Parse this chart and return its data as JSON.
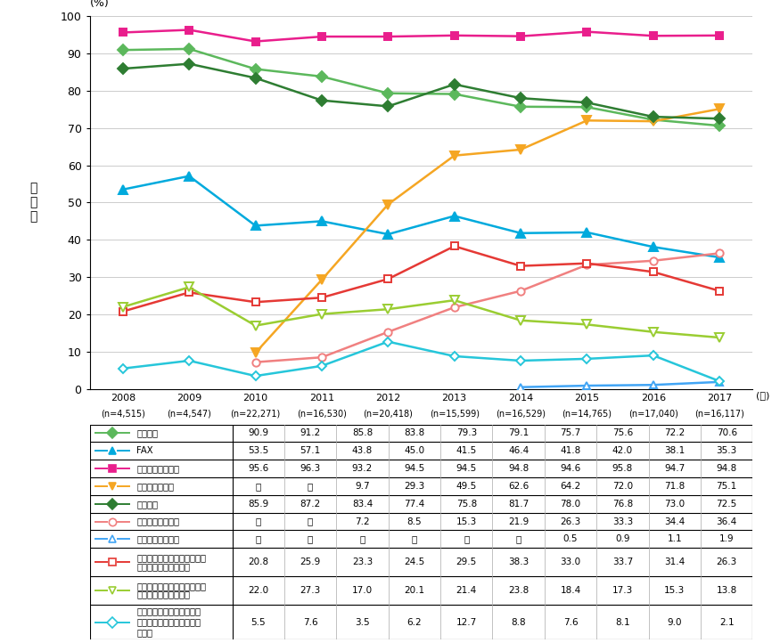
{
  "years_idx": [
    0,
    1,
    2,
    3,
    4,
    5,
    6,
    7,
    8,
    9
  ],
  "x_labels_line1": [
    "2008",
    "2009",
    "2010",
    "2011",
    "2012",
    "2013",
    "2014",
    "2015",
    "2016",
    "2017"
  ],
  "x_labels_line2": [
    "(n=4,515)",
    "(n=4,547)",
    "(n=22,271)",
    "(n=16,530)",
    "(n=20,418)",
    "(n=15,599)",
    "(n=16,529)",
    "(n=14,765)",
    "(n=17,040)",
    "(n=16,117)"
  ],
  "year_unit": "(年)",
  "ylabel": "保\n有\n率",
  "ylabel_unit": "(%)",
  "ylim": [
    0,
    100
  ],
  "yticks": [
    0,
    10,
    20,
    30,
    40,
    50,
    60,
    70,
    80,
    90,
    100
  ],
  "series": [
    {
      "name": "固定電話",
      "values": [
        90.9,
        91.2,
        85.8,
        83.8,
        79.3,
        79.1,
        75.7,
        75.6,
        72.2,
        70.6
      ],
      "color": "#5cb85c",
      "marker": "D",
      "markersize": 6,
      "markerfacecolor": "#5cb85c",
      "linewidth": 1.8
    },
    {
      "name": "FAX",
      "values": [
        53.5,
        57.1,
        43.8,
        45.0,
        41.5,
        46.4,
        41.8,
        42.0,
        38.1,
        35.3
      ],
      "color": "#00aadd",
      "marker": "^",
      "markersize": 7,
      "markerfacecolor": "#00aadd",
      "linewidth": 1.8
    },
    {
      "name": "モバイル端末全体",
      "values": [
        95.6,
        96.3,
        93.2,
        94.5,
        94.5,
        94.8,
        94.6,
        95.8,
        94.7,
        94.8
      ],
      "color": "#e91e8c",
      "marker": "s",
      "markersize": 6,
      "markerfacecolor": "#e91e8c",
      "linewidth": 1.8
    },
    {
      "name": "スマートフォン",
      "values": [
        null,
        null,
        9.7,
        29.3,
        49.5,
        62.6,
        64.2,
        72.0,
        71.8,
        75.1
      ],
      "color": "#f5a623",
      "marker": "v",
      "markersize": 7,
      "markerfacecolor": "#f5a623",
      "linewidth": 1.8
    },
    {
      "name": "パソコン",
      "values": [
        85.9,
        87.2,
        83.4,
        77.4,
        75.8,
        81.7,
        78.0,
        76.8,
        73.0,
        72.5
      ],
      "color": "#2e7d32",
      "marker": "D",
      "markersize": 6,
      "markerfacecolor": "#2e7d32",
      "linewidth": 1.8
    },
    {
      "name": "タブレット型端末",
      "values": [
        null,
        null,
        7.2,
        8.5,
        15.3,
        21.9,
        26.3,
        33.3,
        34.4,
        36.4
      ],
      "color": "#f08080",
      "marker": "o",
      "markersize": 6,
      "markerfacecolor": "white",
      "linewidth": 1.8
    },
    {
      "name": "ウェアラブル端末",
      "values": [
        null,
        null,
        null,
        null,
        null,
        null,
        0.5,
        0.9,
        1.1,
        1.9
      ],
      "color": "#42a5f5",
      "marker": "^",
      "markersize": 6,
      "markerfacecolor": "white",
      "linewidth": 1.8
    },
    {
      "name": "インターネットに接続できる家庭用テレビゲーム機",
      "values": [
        20.8,
        25.9,
        23.3,
        24.5,
        29.5,
        38.3,
        33.0,
        33.7,
        31.4,
        26.3
      ],
      "color": "#e53935",
      "marker": "s",
      "markersize": 6,
      "markerfacecolor": "white",
      "linewidth": 1.8
    },
    {
      "name": "インターネットに接続できる携帯型音楽プレイヤー",
      "values": [
        22.0,
        27.3,
        17.0,
        20.1,
        21.4,
        23.8,
        18.4,
        17.3,
        15.3,
        13.8
      ],
      "color": "#9acd32",
      "marker": "v",
      "markersize": 7,
      "markerfacecolor": "white",
      "linewidth": 1.8
    },
    {
      "name": "その他インターネットに接続できる家電（スマート家電）等",
      "values": [
        5.5,
        7.6,
        3.5,
        6.2,
        12.7,
        8.8,
        7.6,
        8.1,
        9.0,
        2.1
      ],
      "color": "#26c6da",
      "marker": "D",
      "markersize": 5,
      "markerfacecolor": "white",
      "linewidth": 1.8
    }
  ],
  "table_label_names": [
    "固定電話",
    "FAX",
    "モバイル端末全体",
    "スマートフォン",
    "パソコン",
    "タブレット型端末",
    "ウェアラブル端末",
    "インターネットに接続できる\n家庭用テレビゲーム機",
    "インターネットに接続できる\n携帯型音楽プレイヤー",
    "その他インターネットに接\n続できる家電（スマート家\n電）等"
  ]
}
